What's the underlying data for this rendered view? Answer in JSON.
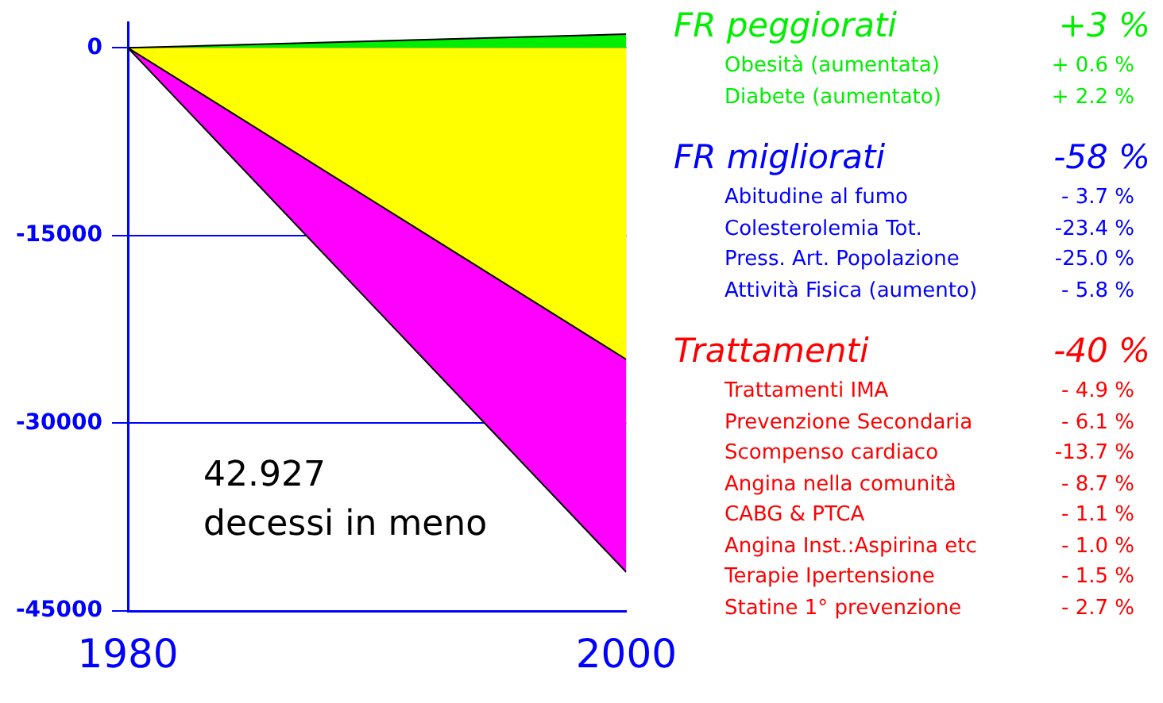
{
  "chart_data": {
    "type": "area",
    "x": [
      1980,
      2000
    ],
    "series": [
      {
        "color": "#00ee00",
        "values": [
          0,
          1100
        ]
      },
      {
        "color": "#ffff00",
        "values": [
          0,
          -24900
        ]
      },
      {
        "color": "#ff00ff",
        "values": [
          0,
          -41900
        ]
      }
    ],
    "xlim": [
      1980,
      2000
    ],
    "xticks": [
      1980,
      2000
    ],
    "ylim": [
      -45000,
      2000
    ],
    "yticks": [
      0,
      -15000,
      -30000,
      -45000
    ],
    "grid": "y",
    "legend": false,
    "annotations": [
      "42.927 decessi in meno",
      "FR peggiorati",
      "+3 %",
      "Obesità (aumentata)",
      "+ 0.6 %",
      "Diabete (aumentato)",
      "+ 2.2 %",
      "FR migliorati",
      "-58 %",
      "Abitudine al fumo",
      "- 3.7 %",
      "Colesterolemia Tot.",
      "-23.4 %",
      "Press. Art. Popolazione",
      "-25.0 %",
      "Attività Fisica (aumento)",
      "- 5.8 %",
      "Trattamenti",
      "-40 %",
      "Trattamenti IMA",
      "- 4.9 %",
      "Prevenzione Secondaria",
      "- 6.1 %",
      "Scompenso cardiaco",
      "-13.7 %",
      "Angina nella comunità",
      "- 8.7 %",
      "CABG & PTCA",
      "- 1.1 %",
      "Angina Inst.:Aspirina etc",
      "- 1.0 %",
      "Terapie Ipertensione",
      "- 1.5 %",
      "Statine 1° prevenzione",
      "- 2.7 %"
    ]
  }
}
